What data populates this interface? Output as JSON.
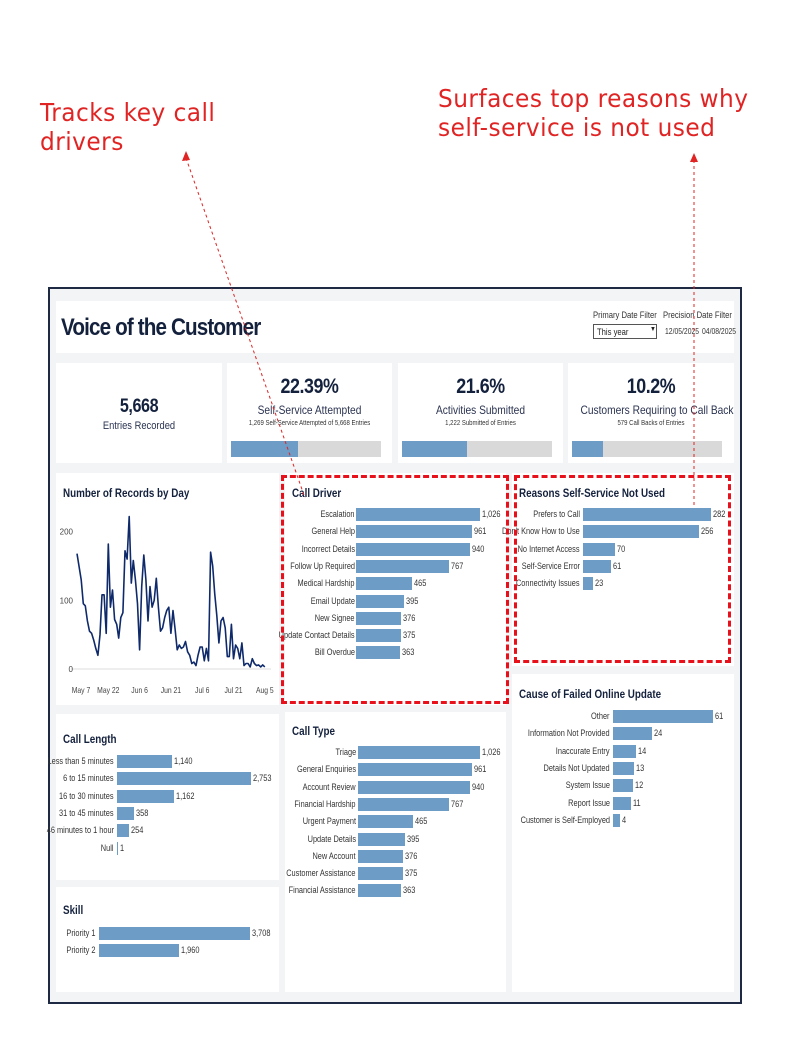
{
  "annotations": {
    "left": [
      "Tracks key call",
      "drivers"
    ],
    "right": [
      "Surfaces top reasons why",
      "self-service is not used"
    ],
    "color": "#e02424"
  },
  "header": {
    "title": "Voice of the Customer",
    "primary_filter_label": "Primary Date Filter",
    "primary_filter_value": "This year",
    "precision_filter_label": "Precision Date Filter",
    "precision_start": "12/05/2025",
    "precision_end": "04/08/2025"
  },
  "kpis": [
    {
      "value": "5,668",
      "label": "Entries Recorded"
    },
    {
      "value": "22.39%",
      "label": "Self-Service Attempted",
      "sub": "1,269 Self-Service Attempted of 5,668 Entries",
      "progress": 0.2239
    },
    {
      "value": "21.6%",
      "label": "Activities Submitted",
      "sub": "1,222 Submitted of  Entries",
      "progress": 0.216
    },
    {
      "value": "10.2%",
      "label": "Customers Requiring to Call Back",
      "sub": "579 Call Backs of  Entries",
      "progress": 0.102
    }
  ],
  "colors": {
    "bar": "#6d9cc6",
    "line": "#0f2a6b",
    "frame": "#1e2a44",
    "track": "#d9d9d9"
  },
  "chart_data": [
    {
      "id": "records_by_day",
      "type": "line",
      "title": "Number of Records by Day",
      "x_ticks": [
        "May 7",
        "May 22",
        "Jun 6",
        "Jun 21",
        "Jul 6",
        "Jul 21",
        "Aug 5"
      ],
      "y_ticks": [
        "0",
        "100",
        "200"
      ],
      "ylim": [
        0,
        230
      ],
      "day_range": [
        0,
        92
      ],
      "points": [
        [
          0,
          168
        ],
        [
          2,
          130
        ],
        [
          3,
          95
        ],
        [
          4,
          92
        ],
        [
          5,
          70
        ],
        [
          6,
          55
        ],
        [
          7,
          52
        ],
        [
          8,
          42
        ],
        [
          9,
          30
        ],
        [
          10,
          20
        ],
        [
          11,
          50
        ],
        [
          12,
          108
        ],
        [
          13,
          108
        ],
        [
          14,
          52
        ],
        [
          15,
          182
        ],
        [
          16,
          90
        ],
        [
          17,
          115
        ],
        [
          18,
          72
        ],
        [
          19,
          65
        ],
        [
          20,
          45
        ],
        [
          21,
          75
        ],
        [
          22,
          82
        ],
        [
          23,
          172
        ],
        [
          24,
          160
        ],
        [
          25,
          222
        ],
        [
          26,
          125
        ],
        [
          27,
          158
        ],
        [
          28,
          130
        ],
        [
          29,
          95
        ],
        [
          30,
          28
        ],
        [
          31,
          120
        ],
        [
          32,
          166
        ],
        [
          33,
          130
        ],
        [
          34,
          70
        ],
        [
          35,
          120
        ],
        [
          36,
          90
        ],
        [
          37,
          100
        ],
        [
          38,
          132
        ],
        [
          39,
          90
        ],
        [
          40,
          55
        ],
        [
          41,
          60
        ],
        [
          42,
          75
        ],
        [
          43,
          85
        ],
        [
          44,
          90
        ],
        [
          45,
          52
        ],
        [
          46,
          85
        ],
        [
          47,
          58
        ],
        [
          48,
          28
        ],
        [
          49,
          35
        ],
        [
          50,
          30
        ],
        [
          51,
          32
        ],
        [
          52,
          40
        ],
        [
          53,
          25
        ],
        [
          54,
          20
        ],
        [
          55,
          8
        ],
        [
          56,
          10
        ],
        [
          57,
          5
        ],
        [
          58,
          20
        ],
        [
          59,
          32
        ],
        [
          60,
          32
        ],
        [
          61,
          12
        ],
        [
          62,
          30
        ],
        [
          63,
          12
        ],
        [
          64,
          170
        ],
        [
          65,
          150
        ],
        [
          66,
          110
        ],
        [
          67,
          78
        ],
        [
          68,
          38
        ],
        [
          69,
          70
        ],
        [
          70,
          75
        ],
        [
          71,
          60
        ],
        [
          72,
          18
        ],
        [
          73,
          18
        ],
        [
          74,
          65
        ],
        [
          75,
          15
        ],
        [
          76,
          35
        ],
        [
          77,
          30
        ],
        [
          78,
          15
        ],
        [
          79,
          38
        ],
        [
          80,
          5
        ],
        [
          81,
          8
        ],
        [
          82,
          8
        ],
        [
          83,
          3
        ],
        [
          84,
          15
        ],
        [
          85,
          8
        ],
        [
          86,
          5
        ],
        [
          87,
          6
        ],
        [
          88,
          3
        ],
        [
          89,
          6
        ],
        [
          90,
          3
        ]
      ]
    },
    {
      "id": "call_driver",
      "type": "bar",
      "title": "Call Driver",
      "categories": [
        "Escalation",
        "General Help",
        "Incorrect Details",
        "Follow Up Required",
        "Medical Hardship",
        "Email Update",
        "New Signee",
        "Update Contact Details",
        "Bill Overdue"
      ],
      "values": [
        1026,
        961,
        940,
        767,
        465,
        395,
        376,
        375,
        363
      ],
      "labels": [
        "1,026",
        "961",
        "940",
        "767",
        "465",
        "395",
        "376",
        "375",
        "363"
      ]
    },
    {
      "id": "reasons_not_used",
      "type": "bar",
      "title": "Reasons Self-Service Not Used",
      "categories": [
        "Prefers to Call",
        "Don't Know How to Use",
        "No Internet Access",
        "Self-Service Error",
        "Connectivity Issues"
      ],
      "values": [
        282,
        256,
        70,
        61,
        23
      ],
      "labels": [
        "282",
        "256",
        "70",
        "61",
        "23"
      ]
    },
    {
      "id": "failed_update",
      "type": "bar",
      "title": "Cause of Failed Online Update",
      "categories": [
        "Other",
        "Information Not Provided",
        "Inaccurate Entry",
        "Details Not Updated",
        "System Issue",
        "Report Issue",
        "Customer is Self-Employed"
      ],
      "values": [
        61,
        24,
        14,
        13,
        12,
        11,
        4
      ],
      "labels": [
        "61",
        "24",
        "14",
        "13",
        "12",
        "11",
        "4"
      ]
    },
    {
      "id": "call_length",
      "type": "bar",
      "title": "Call Length",
      "categories": [
        "Less than 5 minutes",
        "6 to 15 minutes",
        "16 to 30 minutes",
        "31 to 45 minutes",
        "46 minutes to 1 hour",
        "Null"
      ],
      "values": [
        1140,
        2753,
        1162,
        358,
        254,
        1
      ],
      "labels": [
        "1,140",
        "2,753",
        "1,162",
        "358",
        "254",
        "1"
      ]
    },
    {
      "id": "call_type",
      "type": "bar",
      "title": "Call Type",
      "categories": [
        "Triage",
        "General Enquiries",
        "Account Review",
        "Financial Hardship",
        "Urgent Payment",
        "Update Details",
        "New Account",
        "Customer Assistance",
        "Financial Assistance"
      ],
      "values": [
        1026,
        961,
        940,
        767,
        465,
        395,
        376,
        375,
        363
      ],
      "labels": [
        "1,026",
        "961",
        "940",
        "767",
        "465",
        "395",
        "376",
        "375",
        "363"
      ]
    },
    {
      "id": "skill",
      "type": "bar",
      "title": "Skill",
      "categories": [
        "Priority 1",
        "Priority 2"
      ],
      "values": [
        3708,
        1960
      ],
      "labels": [
        "3,708",
        "1,960"
      ]
    }
  ]
}
